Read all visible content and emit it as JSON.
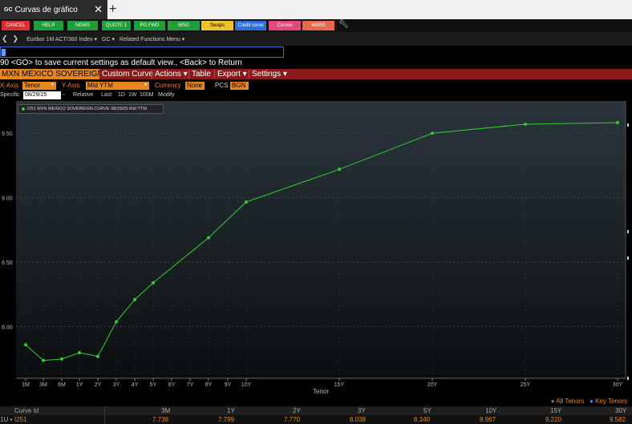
{
  "window": {
    "tab_badge": "GC",
    "tab_title": "Curvas de gráfico",
    "close": "✕",
    "new_tab": "+"
  },
  "fkeys": [
    {
      "label": "CANCEL",
      "color": "#d92f2f"
    },
    {
      "label": "HELP",
      "color": "#1f9e3a"
    },
    {
      "label": "NEWS",
      "color": "#1f9e3a"
    },
    {
      "label": "QUOTE 1",
      "color": "#1f9e3a"
    },
    {
      "label": "PG FWD",
      "color": "#1f9e3a"
    },
    {
      "label": "MSG",
      "color": "#1f9e3a"
    },
    {
      "label": "Swaps",
      "color": "#f2c12e"
    },
    {
      "label": "Credit curve",
      "color": "#2d6fd8"
    },
    {
      "label": "Curves",
      "color": "#e8457a"
    },
    {
      "label": "MARS",
      "color": "#e8694a"
    }
  ],
  "nav": {
    "back": "❮",
    "forward": "❯",
    "security": "Euribor 1M ACT/360 Index ▾",
    "function": "GC ▾",
    "related": "Related Functions Menu ▾"
  },
  "message": "90 <GO> to save current settings as default view., <Back> to Return",
  "menubar": {
    "ticker": "MXN MEXICO SOVEREIGN CU",
    "items": [
      "Custom Curve",
      "Actions ▾",
      "Table",
      "Export ▾",
      "Settings ▾"
    ]
  },
  "axis_row": {
    "xaxis_label": "X-Axis",
    "xaxis_value": "Tenor",
    "yaxis_label": "Y-Axis",
    "yaxis_value": "Mid YTM",
    "currency_label": "Currency",
    "currency_value": "None",
    "pcs_label": "PCS",
    "pcs_value": "BGN"
  },
  "spec_row": {
    "specific": "Specific",
    "date": "08/29/25",
    "relative": "Relative",
    "last": "Last",
    "d1": "1D",
    "w1": "1W",
    "m100": "100M",
    "modify": "Modify"
  },
  "legend": "I251 MXN MEXICO SOVEREIGN CURVE 08/29/25 Mid YTM",
  "chart_data": {
    "type": "line",
    "x_label": "Tenor",
    "x_ticks": [
      "1M",
      "3M",
      "6M",
      "1Y",
      "2Y",
      "3Y",
      "4Y",
      "5Y",
      "6Y",
      "7Y",
      "8Y",
      "9Y",
      "10Y",
      "15Y",
      "20Y",
      "25Y",
      "30Y"
    ],
    "y_ticks": [
      "8.00",
      "8.50",
      "9.00",
      "9.50"
    ],
    "ylim": [
      7.6,
      9.75
    ],
    "series": [
      {
        "color": "#33cc33",
        "points": [
          {
            "x": "1M",
            "y": 7.86
          },
          {
            "x": "3M",
            "y": 7.738
          },
          {
            "x": "6M",
            "y": 7.75
          },
          {
            "x": "1Y",
            "y": 7.799
          },
          {
            "x": "2Y",
            "y": 7.77
          },
          {
            "x": "3Y",
            "y": 8.038
          },
          {
            "x": "4Y",
            "y": 8.21
          },
          {
            "x": "5Y",
            "y": 8.34
          },
          {
            "x": "8Y",
            "y": 8.69
          },
          {
            "x": "10Y",
            "y": 8.967
          },
          {
            "x": "15Y",
            "y": 9.22
          },
          {
            "x": "20Y",
            "y": 9.5
          },
          {
            "x": "25Y",
            "y": 9.57
          },
          {
            "x": "30Y",
            "y": 9.582
          }
        ]
      }
    ]
  },
  "tenor_legend": {
    "dot": "●",
    "all": "All Tenors",
    "key": "Key Tenors"
  },
  "table": {
    "header": [
      "Curve Id",
      "3M",
      "1Y",
      "2Y",
      "3Y",
      "5Y",
      "10Y",
      "15Y",
      "30Y"
    ],
    "row": {
      "prefix": "1U ▪",
      "id": "I251",
      "values": [
        "7.738",
        "7.799",
        "7.770",
        "8.038",
        "8.340",
        "8.967",
        "9.220",
        "9.582"
      ]
    }
  }
}
